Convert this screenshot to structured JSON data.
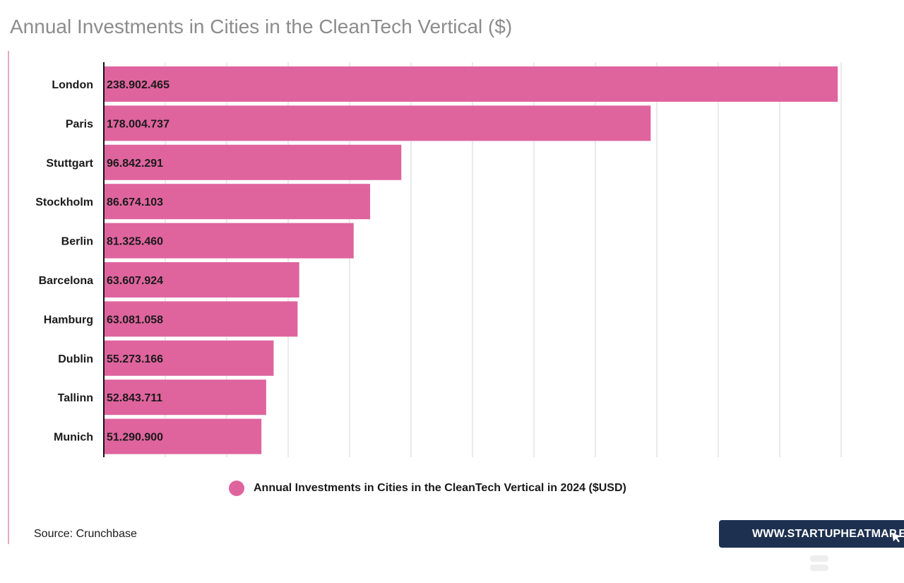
{
  "title": "Annual Investments in Cities in the CleanTech Vertical ($)",
  "legend": {
    "label": "Annual Investments in Cities in the CleanTech Vertical in 2024 ($USD)",
    "color": "#df649e"
  },
  "source": "Source: Crunchbase",
  "brand": {
    "text": "WWW.STARTUPHEATMAP.EU",
    "background": "#1d3050"
  },
  "chart_data": {
    "type": "bar",
    "orientation": "horizontal",
    "categories": [
      "London",
      "Paris",
      "Stuttgart",
      "Stockholm",
      "Berlin",
      "Barcelona",
      "Hamburg",
      "Dublin",
      "Tallinn",
      "Munich"
    ],
    "values": [
      238902465,
      178004737,
      96842291,
      86674103,
      81325460,
      63607924,
      63081058,
      55273166,
      52843711,
      51290900
    ],
    "value_labels": [
      "238.902.465",
      "178.004.737",
      "96.842.291",
      "86.674.103",
      "81.325.460",
      "63.607.924",
      "63.081.058",
      "55.273.166",
      "52.843.711",
      "51.290.900"
    ],
    "series": [
      {
        "name": "Annual Investments in Cities in the CleanTech Vertical in 2024 ($USD)",
        "values": [
          238902465,
          178004737,
          96842291,
          86674103,
          81325460,
          63607924,
          63081058,
          55273166,
          52843711,
          51290900
        ]
      }
    ],
    "title": "Annual Investments in Cities in the CleanTech Vertical ($)",
    "xlabel": "",
    "ylabel": "",
    "xlim": [
      0,
      240000000
    ],
    "grid_step": 20000000,
    "grid": true,
    "legend_position": "bottom",
    "bar_color": "#df649e"
  }
}
